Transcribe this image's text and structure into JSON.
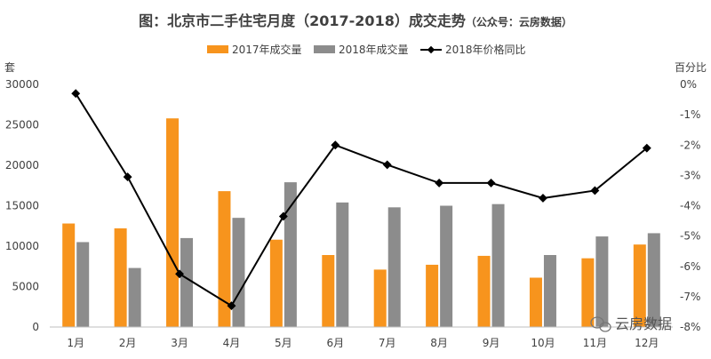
{
  "chart_data": {
    "type": "bar",
    "title": "图：北京市二手住宅月度（2017-2018）成交走势",
    "title_note": "（公众号：云房数据）",
    "categories": [
      "1月",
      "2月",
      "3月",
      "4月",
      "5月",
      "6月",
      "7月",
      "8月",
      "9月",
      "10月",
      "11月",
      "12月"
    ],
    "series": [
      {
        "name": "2017年成交量",
        "type": "bar",
        "axis": "left",
        "color": "#F7941D",
        "values": [
          12800,
          12200,
          25800,
          16800,
          10800,
          8900,
          7100,
          7700,
          8800,
          6100,
          8500,
          10200
        ]
      },
      {
        "name": "2018年成交量",
        "type": "bar",
        "axis": "left",
        "color": "#8C8C8C",
        "values": [
          10500,
          7300,
          11000,
          13500,
          17900,
          15400,
          14800,
          15000,
          15200,
          8900,
          11200,
          11600
        ]
      },
      {
        "name": "2018年价格同比",
        "type": "line",
        "axis": "right",
        "color": "#000000",
        "values": [
          -0.3,
          -3.05,
          -6.25,
          -7.3,
          -4.35,
          -2.0,
          -2.65,
          -3.25,
          -3.25,
          -3.75,
          -3.5,
          -2.1
        ]
      }
    ],
    "left_axis": {
      "label": "套",
      "ylim": [
        0,
        30000
      ],
      "ticks": [
        0,
        5000,
        10000,
        15000,
        20000,
        25000,
        30000
      ]
    },
    "right_axis": {
      "label": "百分比",
      "ylim": [
        -8,
        0
      ],
      "ticks": [
        0,
        -1,
        -2,
        -3,
        -4,
        -5,
        -6,
        -7,
        -8
      ],
      "tick_suffix": "%"
    },
    "grid": false,
    "legend_position": "top-center"
  },
  "watermark": {
    "text": "云房数据",
    "icon": "wechat-icon"
  }
}
